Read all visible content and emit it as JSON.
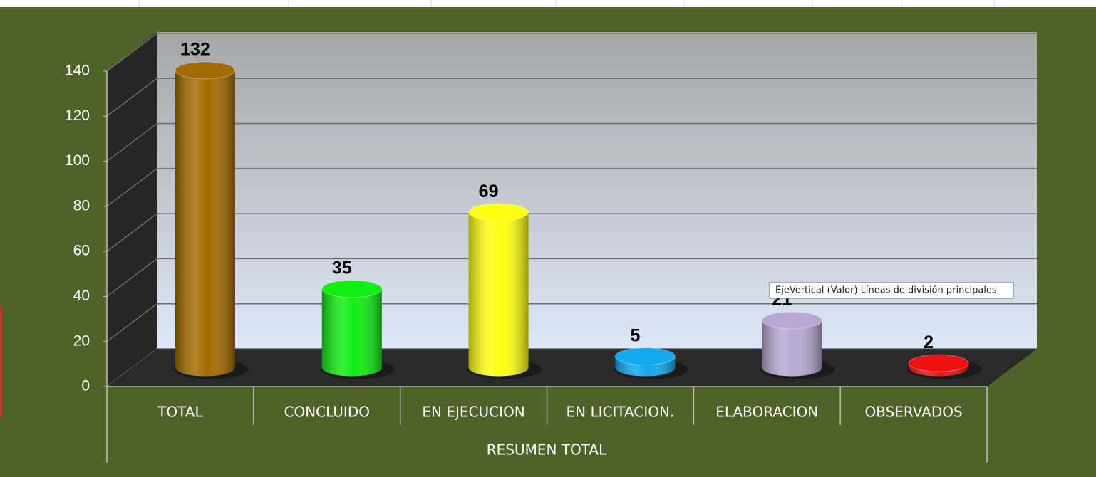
{
  "chart_data": {
    "type": "bar3d",
    "categories": [
      "TOTAL",
      "CONCLUIDO",
      "EN EJECUCION",
      "EN LICITACION.",
      "ELABORACION",
      "OBSERVADOS"
    ],
    "values": [
      132,
      35,
      69,
      5,
      21,
      2
    ],
    "colors": [
      "#a36b00",
      "#11ee11",
      "#ffff11",
      "#11aaee",
      "#b8a8d2",
      "#ee1111"
    ],
    "group_label": "RESUMEN TOTAL",
    "tooltip": "EjeVertical (Valor)  Líneas de división principales",
    "ylim": [
      0,
      140
    ],
    "yticks": [
      0,
      20,
      40,
      60,
      80,
      100,
      120,
      140
    ],
    "grid": true
  }
}
